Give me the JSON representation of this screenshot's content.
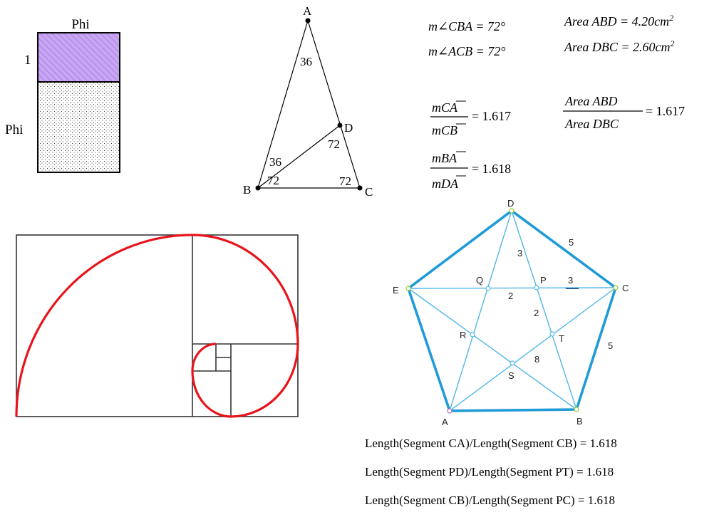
{
  "rectangle": {
    "top_label": "Phi",
    "side_small": "1",
    "side_large": "Phi"
  },
  "triangle": {
    "vertices": {
      "A": "A",
      "B": "B",
      "C": "C",
      "D": "D"
    },
    "angles": {
      "a": "36",
      "b_upper": "36",
      "b_lower": "72",
      "c": "72",
      "d": "72"
    }
  },
  "measurements": {
    "angle_cba": "m∠CBA = 72°",
    "angle_acb": "m∠ACB = 72°",
    "area_abd": "Area ABD = 4.20cm",
    "area_dbc": "Area DBC = 2.60cm",
    "area_exp": "2",
    "ratio1_num": "mCA",
    "ratio1_den": "mCB",
    "ratio1_value": "= 1.617",
    "ratio2_num": "mBA",
    "ratio2_den": "mDA",
    "ratio2_value": "= 1.618",
    "ratio3_num": "Area ABD",
    "ratio3_den": "Area DBC",
    "ratio3_value": "= 1.617"
  },
  "pentagon": {
    "points": {
      "A": "A",
      "B": "B",
      "C": "C",
      "D": "D",
      "E": "E",
      "P": "P",
      "Q": "Q",
      "R": "R",
      "S": "S",
      "T": "T"
    },
    "segment_labels": {
      "dc": "5",
      "cb": "5",
      "dp": "3",
      "pc": "3",
      "qp": "2",
      "pt": "2",
      "center": "8"
    }
  },
  "lengths": {
    "line1": "Length(Segment CA)/Length(Segment CB) = 1.618",
    "line2": "Length(Segment PD)/Length(Segment PT) = 1.618",
    "line3": "Length(Segment CB)/Length(Segment PC) = 1.618"
  },
  "colors": {
    "hatch": "#c9a6f3",
    "hatch_line": "#a070e0",
    "spiral": "#e8141a",
    "pentagon_outline": "#1f9bd6",
    "pentagon_inner": "#50b7e8",
    "point_fill": "#ffffff"
  }
}
